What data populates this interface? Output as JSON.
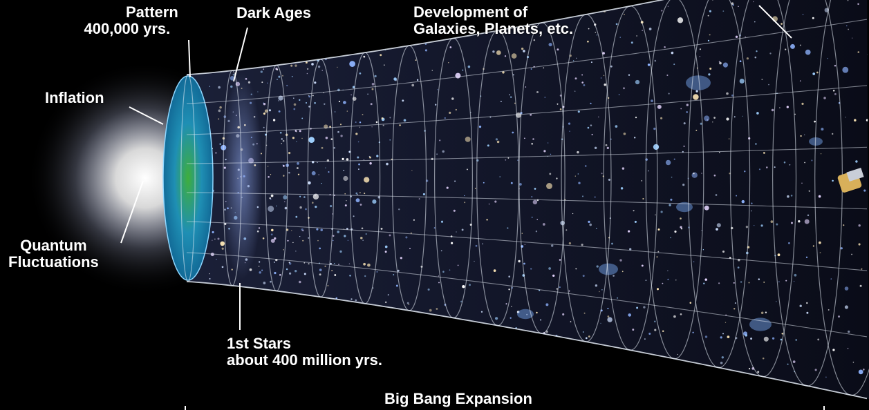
{
  "labels": {
    "pattern": {
      "line1": "Pattern",
      "line2": "400,000 yrs."
    },
    "dark_ages": "Dark Ages",
    "development": {
      "line1": "Development of",
      "line2": "Galaxies, Planets, etc."
    },
    "inflation": "Inflation",
    "quantum": {
      "line1": "Quantum",
      "line2": "Fluctuations"
    },
    "first_stars": {
      "line1": "1st Stars",
      "line2": "about 400 million yrs."
    },
    "bottom_title": "Big Bang Expansion"
  },
  "colors": {
    "background": "#000000",
    "grid_line": "#e8eef8",
    "glow": "#ffffff",
    "cmb_blue": "#1f8fb4",
    "cmb_green": "#3fae3c",
    "star_blue": "#8fb4ff"
  }
}
